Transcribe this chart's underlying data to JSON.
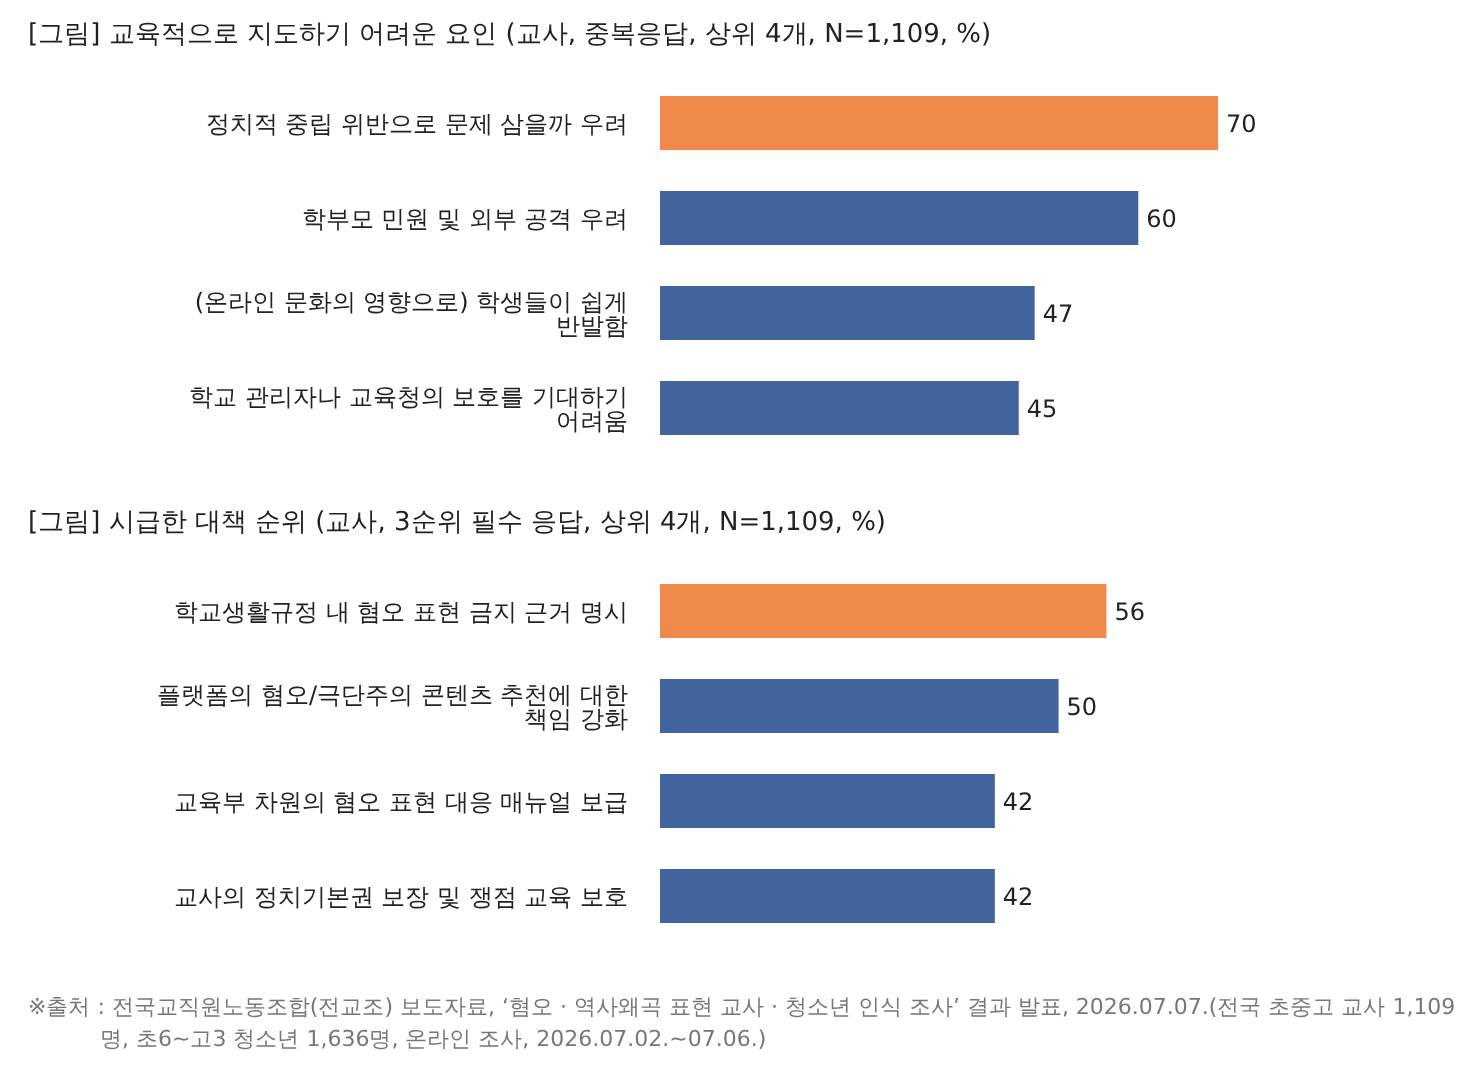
{
  "chart_data": [
    {
      "type": "bar",
      "orientation": "horizontal",
      "title": "[그림] 교육적으로 지도하기 어려운 요인 (교사, 중복응답, 상위 4개, N=1,109, %)",
      "categories": [
        "정치적 중립 위반으로 문제 삼을까 우려",
        "학부모 민원 및 외부 공격 우려",
        "(온라인 문화의 영향으로) 학생들이 쉽게 반발함",
        "학교 관리자나 교육청의 보호를 기대하기 어려움"
      ],
      "values": [
        70,
        60,
        47,
        45
      ],
      "colors": [
        "#f0894a",
        "#41639e",
        "#41639e",
        "#41639e"
      ],
      "data_labels": true
    },
    {
      "type": "bar",
      "orientation": "horizontal",
      "title": "[그림] 시급한 대책 순위 (교사, 3순위 필수 응답, 상위 4개, N=1,109, %)",
      "categories": [
        "학교생활규정 내 혐오 표현 금지 근거 명시",
        "플랫폼의 혐오/극단주의 콘텐츠 추천에 대한 책임 강화",
        "교육부 차원의 혐오 표현 대응 매뉴얼 보급",
        "교사의 정치기본권 보장 및 쟁점 교육 보호"
      ],
      "values": [
        56,
        50,
        42,
        42
      ],
      "colors": [
        "#f0894a",
        "#41639e",
        "#41639e",
        "#41639e"
      ],
      "data_labels": true,
      "annotations": [
        "※출처 : 전국교직원노동조합(전교조) 보도자료, ‘혐오 · 역사왜곡 표현 교사 · 청소년 인식 조사’ 결과 발표, 2026.07.07.(전국 초중고 교사 1,109명, 초6~고3 청소년 1,636명, 온라인 조사, 2026.07.02.~07.06.)"
      ]
    }
  ]
}
